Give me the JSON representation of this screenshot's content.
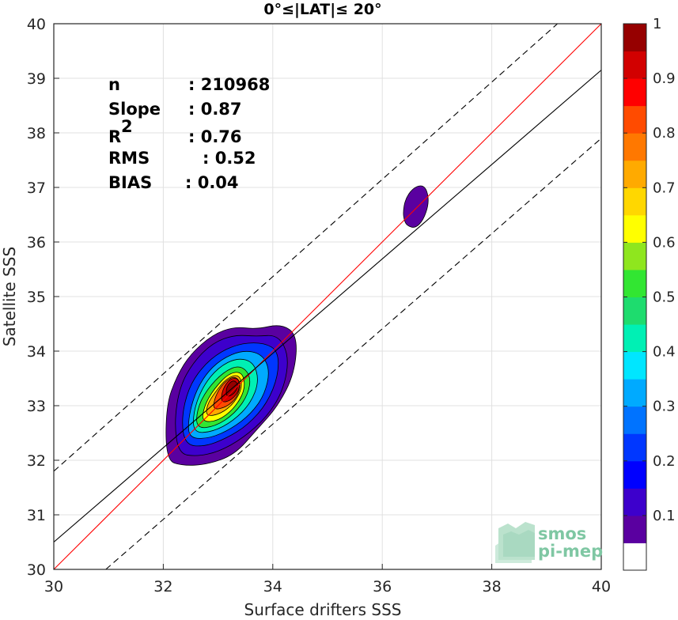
{
  "chart_data": {
    "type": "heatmap",
    "title": "0°≤|LAT|≤ 20°",
    "xlabel": "Surface drifters SSS",
    "ylabel": "Satellite SSS",
    "xlim": [
      30,
      40
    ],
    "ylim": [
      30,
      40
    ],
    "xticks": [
      "30",
      "32",
      "34",
      "36",
      "38",
      "40"
    ],
    "yticks": [
      "30",
      "31",
      "32",
      "33",
      "34",
      "35",
      "36",
      "37",
      "38",
      "39",
      "40"
    ],
    "grid": true,
    "stats": [
      {
        "label": "n",
        "value": ": 210968"
      },
      {
        "label": "Slope",
        "value": ": 0.87"
      },
      {
        "label": "R",
        "sup": "2",
        "value": ": 0.76"
      },
      {
        "label": "RMS",
        "value": ": 0.52"
      },
      {
        "label": "BIAS",
        "value": ": 0.04"
      }
    ],
    "lines": [
      {
        "kind": "identity",
        "color": "#ff0000",
        "style": "solid",
        "x": [
          30,
          40
        ],
        "y": [
          30,
          40
        ]
      },
      {
        "kind": "regression",
        "color": "#000000",
        "style": "solid",
        "x": [
          30,
          40
        ],
        "y": [
          30.5,
          39.15
        ]
      },
      {
        "kind": "upper-bound",
        "color": "#000000",
        "style": "dashed",
        "x": [
          30,
          39.2
        ],
        "y": [
          31.8,
          40
        ]
      },
      {
        "kind": "lower-bound",
        "color": "#000000",
        "style": "dashed",
        "x": [
          30.95,
          40
        ],
        "y": [
          30,
          37.9
        ]
      }
    ],
    "density_main": {
      "center": [
        33.25,
        33.4
      ],
      "levels": [
        {
          "level": 0.05,
          "outline": [
            [
              32.05,
              32.0
            ],
            [
              32.35,
              31.9
            ],
            [
              32.8,
              31.92
            ],
            [
              33.3,
              32.1
            ],
            [
              33.7,
              32.55
            ],
            [
              34.1,
              33.0
            ],
            [
              34.4,
              33.6
            ],
            [
              34.45,
              34.3
            ],
            [
              34.15,
              34.5
            ],
            [
              33.7,
              34.4
            ],
            [
              33.3,
              34.45
            ],
            [
              32.9,
              34.3
            ],
            [
              32.5,
              33.95
            ],
            [
              32.25,
              33.55
            ],
            [
              32.05,
              33.0
            ]
          ]
        },
        {
          "level": 0.1,
          "outline": [
            [
              32.28,
              32.12
            ],
            [
              32.6,
              32.07
            ],
            [
              33.0,
              32.15
            ],
            [
              33.45,
              32.4
            ],
            [
              33.9,
              32.8
            ],
            [
              34.2,
              33.3
            ],
            [
              34.3,
              33.9
            ],
            [
              34.1,
              34.3
            ],
            [
              33.7,
              34.27
            ],
            [
              33.3,
              34.3
            ],
            [
              32.9,
              34.15
            ],
            [
              32.55,
              33.8
            ],
            [
              32.3,
              33.35
            ],
            [
              32.2,
              32.7
            ]
          ]
        },
        {
          "level": 0.2,
          "outline": [
            [
              32.4,
              32.28
            ],
            [
              32.75,
              32.25
            ],
            [
              33.15,
              32.4
            ],
            [
              33.55,
              32.65
            ],
            [
              33.9,
              33.05
            ],
            [
              34.1,
              33.55
            ],
            [
              34.1,
              34.0
            ],
            [
              33.85,
              34.15
            ],
            [
              33.45,
              34.15
            ],
            [
              33.05,
              34.0
            ],
            [
              32.7,
              33.7
            ],
            [
              32.45,
              33.3
            ],
            [
              32.33,
              32.75
            ]
          ]
        },
        {
          "level": 0.3,
          "outline": [
            [
              32.48,
              32.4
            ],
            [
              32.85,
              32.4
            ],
            [
              33.25,
              32.58
            ],
            [
              33.6,
              32.85
            ],
            [
              33.85,
              33.2
            ],
            [
              33.95,
              33.65
            ],
            [
              33.8,
              33.95
            ],
            [
              33.45,
              34.02
            ],
            [
              33.05,
              33.85
            ],
            [
              32.75,
              33.55
            ],
            [
              32.55,
              33.15
            ],
            [
              32.45,
              32.7
            ]
          ]
        },
        {
          "level": 0.4,
          "outline": [
            [
              32.55,
              32.5
            ],
            [
              32.9,
              32.52
            ],
            [
              33.28,
              32.72
            ],
            [
              33.6,
              33.05
            ],
            [
              33.75,
              33.45
            ],
            [
              33.65,
              33.8
            ],
            [
              33.35,
              33.88
            ],
            [
              33.0,
              33.7
            ],
            [
              32.72,
              33.35
            ],
            [
              32.55,
              32.9
            ]
          ]
        },
        {
          "level": 0.5,
          "outline": [
            [
              32.6,
              32.58
            ],
            [
              32.95,
              32.62
            ],
            [
              33.3,
              32.85
            ],
            [
              33.55,
              33.2
            ],
            [
              33.6,
              33.55
            ],
            [
              33.4,
              33.75
            ],
            [
              33.1,
              33.62
            ],
            [
              32.8,
              33.3
            ],
            [
              32.62,
              32.95
            ]
          ]
        },
        {
          "level": 0.6,
          "outline": [
            [
              32.7,
              32.7
            ],
            [
              33.0,
              32.72
            ],
            [
              33.3,
              32.95
            ],
            [
              33.5,
              33.3
            ],
            [
              33.45,
              33.62
            ],
            [
              33.2,
              33.6
            ],
            [
              32.92,
              33.3
            ],
            [
              32.75,
              33.0
            ]
          ]
        },
        {
          "level": 0.7,
          "outline": [
            [
              32.78,
              32.8
            ],
            [
              33.05,
              32.85
            ],
            [
              33.3,
              33.05
            ],
            [
              33.45,
              33.35
            ],
            [
              33.38,
              33.58
            ],
            [
              33.15,
              33.5
            ],
            [
              32.95,
              33.25
            ],
            [
              32.8,
              33.02
            ]
          ]
        },
        {
          "level": 0.8,
          "outline": [
            [
              32.9,
              32.92
            ],
            [
              33.15,
              32.97
            ],
            [
              33.35,
              33.15
            ],
            [
              33.42,
              33.42
            ],
            [
              33.3,
              33.55
            ],
            [
              33.1,
              33.42
            ],
            [
              32.95,
              33.18
            ]
          ]
        },
        {
          "level": 0.9,
          "outline": [
            [
              33.05,
              33.05
            ],
            [
              33.25,
              33.1
            ],
            [
              33.4,
              33.3
            ],
            [
              33.38,
              33.5
            ],
            [
              33.22,
              33.5
            ],
            [
              33.08,
              33.3
            ]
          ]
        },
        {
          "level": 1.0,
          "outline": [
            [
              33.15,
              33.15
            ],
            [
              33.3,
              33.22
            ],
            [
              33.38,
              33.38
            ],
            [
              33.28,
              33.48
            ],
            [
              33.15,
              33.35
            ]
          ]
        }
      ]
    },
    "density_blob": {
      "level": 0.05,
      "outline": [
        [
          36.4,
          36.4
        ],
        [
          36.45,
          36.3
        ],
        [
          36.6,
          36.25
        ],
        [
          36.75,
          36.4
        ],
        [
          36.85,
          36.7
        ],
        [
          36.82,
          36.95
        ],
        [
          36.72,
          37.05
        ],
        [
          36.55,
          36.98
        ],
        [
          36.42,
          36.78
        ],
        [
          36.38,
          36.55
        ]
      ]
    },
    "colorbar": {
      "ticks": [
        "0.1",
        "0.2",
        "0.3",
        "0.4",
        "0.5",
        "0.6",
        "0.7",
        "0.8",
        "0.9",
        "1"
      ],
      "colors": [
        "#ffffff",
        "#5a00a0",
        "#3d00cc",
        "#0000ff",
        "#0037ff",
        "#0073ff",
        "#00aaff",
        "#00e6ff",
        "#00f0b4",
        "#1edc6e",
        "#32e632",
        "#8fe61e",
        "#ffff00",
        "#ffd700",
        "#ffaa00",
        "#ff7800",
        "#ff4b00",
        "#ff0000",
        "#d20000",
        "#960000"
      ]
    }
  },
  "watermark": {
    "line1": "smos",
    "line2": "pi-mep",
    "color": "#7fc7a3"
  }
}
